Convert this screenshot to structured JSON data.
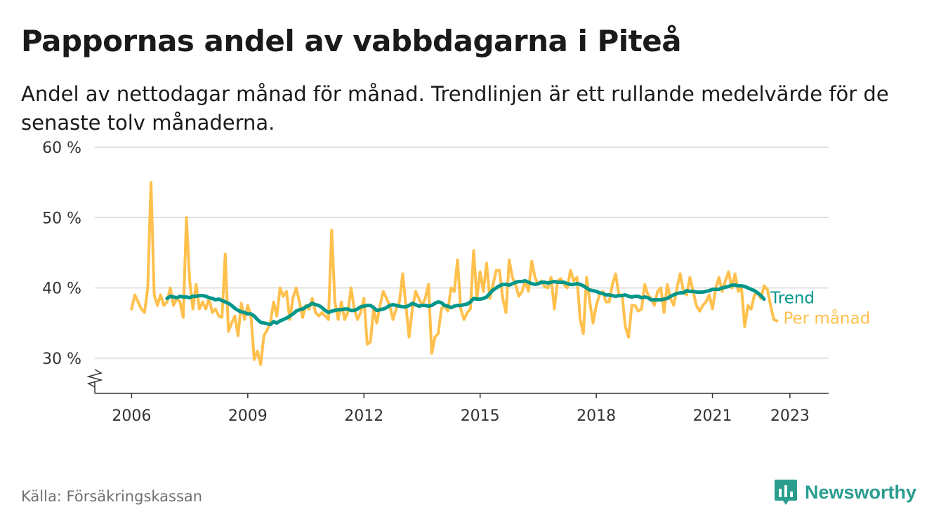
{
  "title": "Pappornas andel av vabbdagarna i Piteå",
  "subtitle": "Andel av nettodagar månad för månad. Trendlinjen är ett rullande medelvärde för de senaste tolv månaderna.",
  "source": "Källa: Försäkringskassan",
  "brand": {
    "name": "Newsworthy",
    "color": "#2a9d8f",
    "icon": "bar-chart-badge-icon"
  },
  "colors": {
    "trend": "#00968a",
    "monthly": "#ffc04d",
    "grid": "#d9d9d9",
    "axis": "#333333"
  },
  "chart_data": {
    "type": "line",
    "title": "Pappornas andel av vabbdagarna i Piteå",
    "ylim": [
      25,
      60
    ],
    "xlim": [
      2005.05,
      2024.0
    ],
    "y_ticks": [
      30,
      40,
      50,
      60
    ],
    "y_tick_labels": [
      "30 %",
      "40 %",
      "50 %",
      "60 %"
    ],
    "x_ticks": [
      2006,
      2009,
      2012,
      2015,
      2018,
      2021,
      2023
    ],
    "x_tick_labels": [
      "2006",
      "2009",
      "2012",
      "2015",
      "2018",
      "2021",
      "2023"
    ],
    "grid": "horizontal",
    "broken_y_axis": true,
    "legend": "direct labels at line ends",
    "series": [
      {
        "name": "Per månad",
        "color": "#ffc04d",
        "start": "2006-01",
        "values": [
          37,
          39,
          38,
          37,
          36.5,
          40,
          55,
          39,
          37.5,
          39,
          37.5,
          38,
          40,
          37.5,
          38.5,
          38,
          35.8,
          50,
          41,
          37,
          40.5,
          37,
          38,
          37,
          38.5,
          36.5,
          37,
          36,
          35.8,
          44.8,
          33.8,
          35,
          36,
          33.2,
          37.8,
          35.5,
          37.5,
          36,
          29.8,
          31,
          29.1,
          33.2,
          34,
          35,
          38,
          36,
          40,
          38.8,
          39.5,
          35.5,
          38.6,
          40,
          38,
          35.8,
          37.5,
          37,
          38.5,
          36.5,
          36,
          36.5,
          36,
          35.5,
          48.2,
          38,
          35.5,
          38,
          35.5,
          36.5,
          40,
          37,
          35.5,
          36.5,
          38.5,
          32,
          32.3,
          37,
          35,
          37.5,
          39.5,
          38.5,
          37.5,
          35.5,
          37,
          38,
          42,
          37.5,
          33,
          37,
          39.5,
          38.5,
          37.5,
          38.5,
          40.5,
          30.7,
          33,
          33.5,
          37,
          37.5,
          36.7,
          40,
          39.5,
          44,
          37,
          35.5,
          36.5,
          37,
          45.3,
          38.5,
          42.3,
          39.5,
          43.5,
          38.5,
          40.5,
          42.5,
          42.5,
          38.5,
          36.5,
          44,
          41.5,
          40.5,
          38.8,
          39.5,
          41,
          39.5,
          43.8,
          41.5,
          40.5,
          41,
          40.2,
          40,
          41.5,
          37,
          41,
          41.3,
          40.5,
          40,
          42.5,
          41,
          41.5,
          35.5,
          33.5,
          41.5,
          38,
          35,
          37.5,
          39,
          39.5,
          38,
          38,
          40.5,
          42,
          39,
          39,
          34.5,
          33,
          37.5,
          37.5,
          36.7,
          37,
          40.5,
          39,
          38.5,
          37.5,
          39.5,
          40,
          36.5,
          40.5,
          38.5,
          37.5,
          40,
          42,
          39.5,
          39,
          41.5,
          39.5,
          37.5,
          36.7,
          37.5,
          38,
          39,
          37,
          40,
          41.5,
          39.5,
          41,
          42.3,
          40,
          42,
          39.5,
          40,
          34.5,
          37.5,
          37,
          39,
          39.3,
          38.5,
          40.3,
          39.8,
          37.5,
          35.5,
          35.3
        ]
      },
      {
        "name": "Trend",
        "color": "#00968a",
        "start": "2006-12",
        "values": [
          38.5,
          38.8,
          38.7,
          38.6,
          38.8,
          38.7,
          38.7,
          38.6,
          38.8,
          38.8,
          38.9,
          38.9,
          38.8,
          38.6,
          38.5,
          38.3,
          38.4,
          38.2,
          38.0,
          37.8,
          37.5,
          37.1,
          36.8,
          36.6,
          36.5,
          36.3,
          36.3,
          36.0,
          35.5,
          35.1,
          35.0,
          34.9,
          34.8,
          35.2,
          35.0,
          35.3,
          35.5,
          35.7,
          36.0,
          36.3,
          36.7,
          36.9,
          37.0,
          37.3,
          37.5,
          37.8,
          37.6,
          37.5,
          37.2,
          36.8,
          36.5,
          36.7,
          36.8,
          36.9,
          36.9,
          37.0,
          37.0,
          36.8,
          36.8,
          37.0,
          37.3,
          37.4,
          37.5,
          37.5,
          37.2,
          36.8,
          36.9,
          37.0,
          37.2,
          37.5,
          37.6,
          37.5,
          37.4,
          37.3,
          37.3,
          37.5,
          37.8,
          37.6,
          37.4,
          37.5,
          37.5,
          37.4,
          37.5,
          37.8,
          38.0,
          37.9,
          37.5,
          37.4,
          37.2,
          37.4,
          37.5,
          37.5,
          37.6,
          37.7,
          38.0,
          38.5,
          38.4,
          38.4,
          38.5,
          38.7,
          39.2,
          39.7,
          40.0,
          40.3,
          40.5,
          40.5,
          40.4,
          40.6,
          40.8,
          40.9,
          40.9,
          41.0,
          40.8,
          40.6,
          40.5,
          40.6,
          40.8,
          40.8,
          40.7,
          40.8,
          40.9,
          40.8,
          40.8,
          40.8,
          40.6,
          40.5,
          40.5,
          40.6,
          40.5,
          40.3,
          40.0,
          39.7,
          39.6,
          39.5,
          39.3,
          39.2,
          39.0,
          39.0,
          38.9,
          38.8,
          38.9,
          38.9,
          39.0,
          38.8,
          38.7,
          38.8,
          38.8,
          38.6,
          38.7,
          38.6,
          38.3,
          38.3,
          38.3,
          38.3,
          38.4,
          38.5,
          38.8,
          39.0,
          39.2,
          39.3,
          39.3,
          39.6,
          39.5,
          39.5,
          39.4,
          39.4,
          39.4,
          39.5,
          39.6,
          39.8,
          39.8,
          39.8,
          40.0,
          40.1,
          40.2,
          40.4,
          40.4,
          40.3,
          40.3,
          40.2,
          40.0,
          39.8,
          39.6,
          39.3,
          38.9,
          38.4
        ]
      }
    ]
  }
}
